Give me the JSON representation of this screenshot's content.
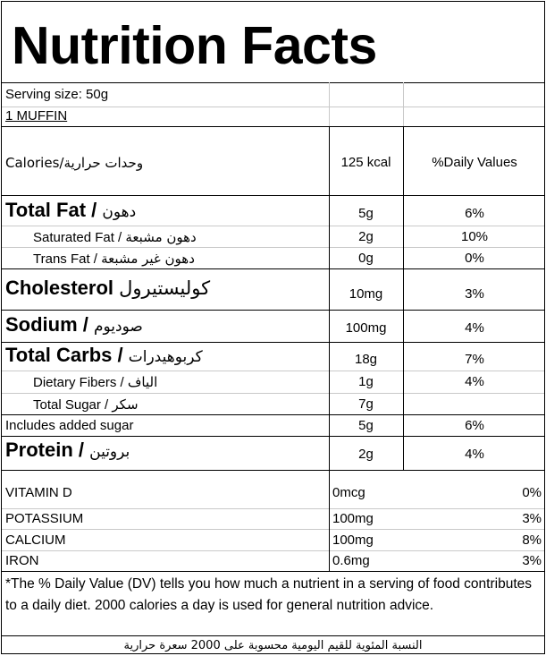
{
  "title": "Nutrition Facts",
  "serving": {
    "size_text": "Serving size:  50g",
    "unit_text": "1 MUFFIN"
  },
  "calories": {
    "label": "Calories/وحدات حرارية",
    "value": "125 kcal",
    "dv_header": "%Daily Values"
  },
  "nutrients": [
    {
      "label_en": "Total Fat / ",
      "label_ar": "دهون",
      "amount": "5g",
      "dv": "6%"
    },
    {
      "label_en": "Saturated Fat / ",
      "label_ar": "دهون مشبعة",
      "amount": "2g",
      "dv": "10%"
    },
    {
      "label_en": "Trans Fat / ",
      "label_ar": "دهون غير مشبعة",
      "amount": "0g",
      "dv": "0%"
    },
    {
      "label_en": "Cholesterol ",
      "label_ar": "كوليستيرول",
      "amount": "10mg",
      "dv": "3%"
    },
    {
      "label_en": "Sodium / ",
      "label_ar": "صوديوم",
      "amount": "100mg",
      "dv": "4%"
    },
    {
      "label_en": "Total Carbs / ",
      "label_ar": "كربوهيدرات",
      "amount": "18g",
      "dv": "7%"
    },
    {
      "label_en": "Dietary Fibers / ",
      "label_ar": "الياف",
      "amount": "1g",
      "dv": "4%"
    },
    {
      "label_en": "Total Sugar / ",
      "label_ar": "سكر",
      "amount": "7g",
      "dv": ""
    },
    {
      "label_en": "Includes added sugar",
      "label_ar": "",
      "amount": "5g",
      "dv": "6%"
    },
    {
      "label_en": "Protein / ",
      "label_ar": "بروتين",
      "amount": "2g",
      "dv": "4%"
    }
  ],
  "vitamins": [
    {
      "label": "VITAMIN D",
      "amount": "0mcg",
      "dv": "0%"
    },
    {
      "label": "POTASSIUM",
      "amount": "100mg",
      "dv": "3%"
    },
    {
      "label": "CALCIUM",
      "amount": "100mg",
      "dv": "8%"
    },
    {
      "label": "IRON",
      "amount": "0.6mg",
      "dv": "3%"
    }
  ],
  "footnote_en": "*The % Daily Value (DV) tells you how much a nutrient in a serving of food contributes to a daily diet. 2000 calories a day is used for general nutrition advice.",
  "footnote_ar": "النسبة المئوية للقيم اليومية محسوبة على 2000 سعرة حرارية"
}
